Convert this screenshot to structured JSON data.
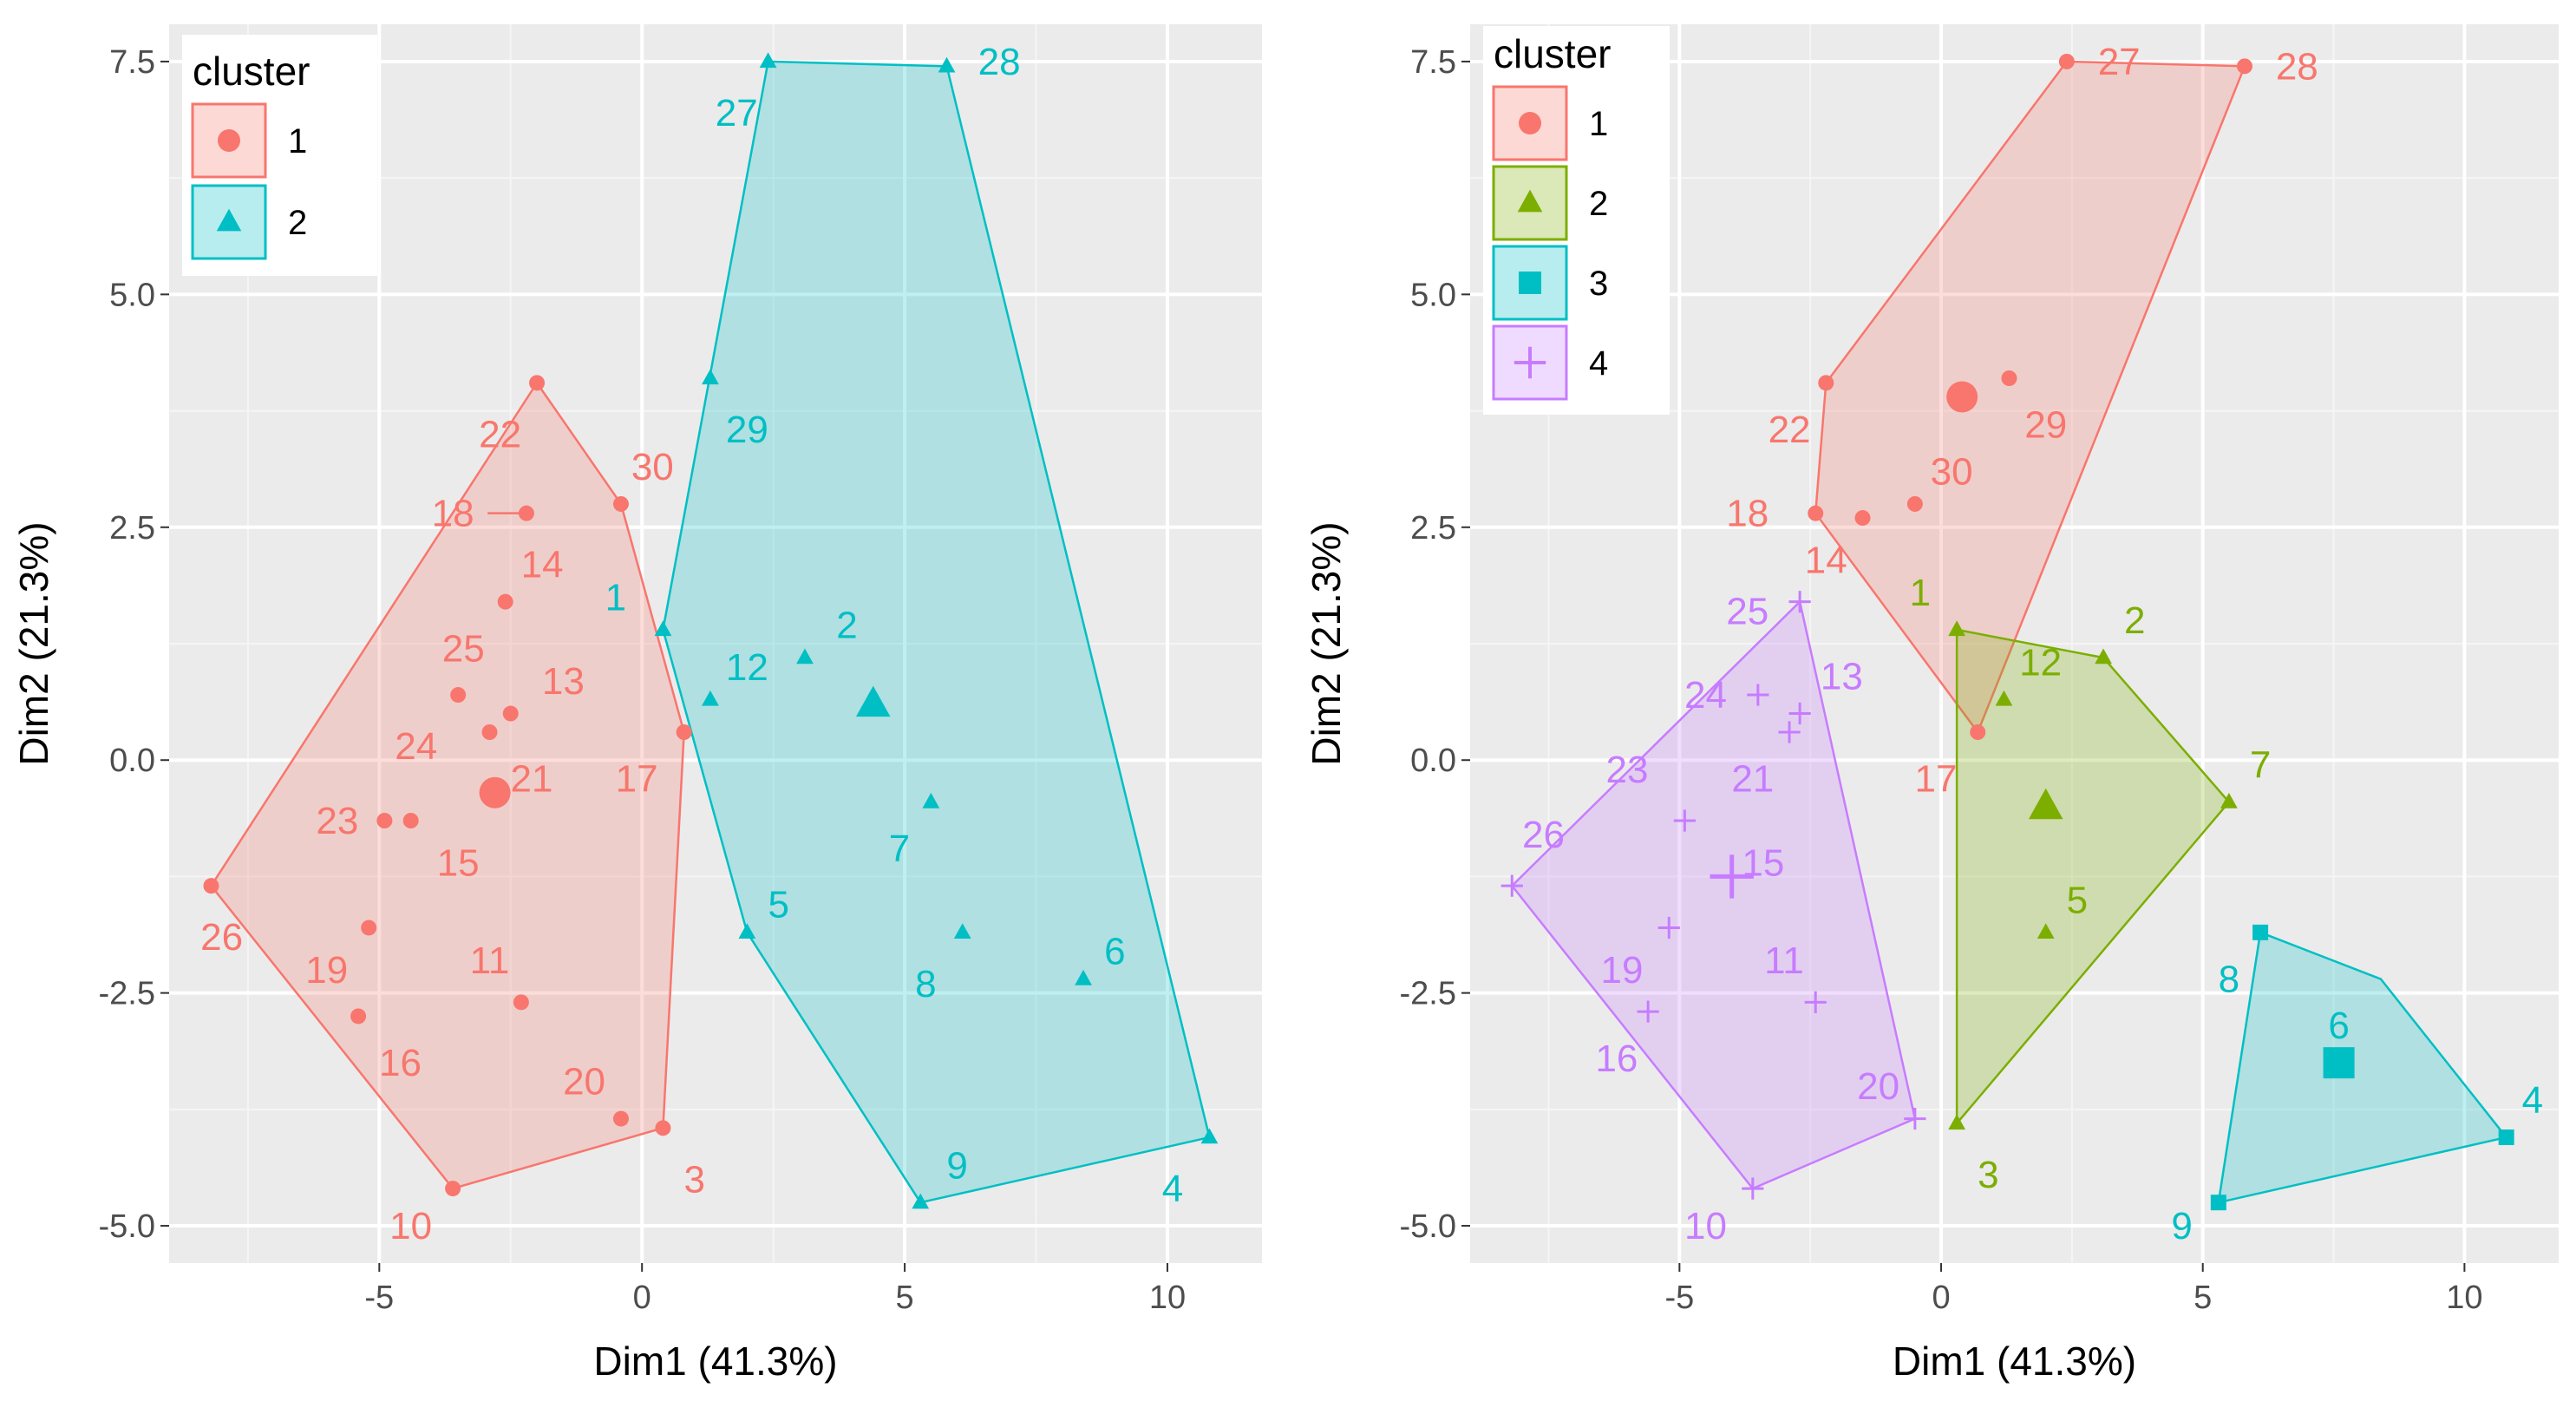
{
  "chart_data": [
    {
      "type": "scatter",
      "title": "",
      "xlabel": "Dim1 (41.3%)",
      "ylabel": "Dim2 (21.3%)",
      "xlim": [
        -9,
        11.8
      ],
      "ylim": [
        -5.4,
        7.9
      ],
      "xticks": [
        -5,
        0,
        5,
        10
      ],
      "xtick_labels": [
        "-5",
        "0",
        "5",
        "10"
      ],
      "yticks": [
        -5,
        -2.5,
        0,
        2.5,
        5,
        7.5
      ],
      "ytick_labels": [
        "-5.0",
        "-2.5",
        "0.0",
        "2.5",
        "5.0",
        "7.5"
      ],
      "legend": {
        "title": "cluster",
        "position": "top-left",
        "entries": [
          {
            "id": "1",
            "label": "1",
            "shape": "circle",
            "color": "#F8766D"
          },
          {
            "id": "2",
            "label": "2",
            "shape": "triangle",
            "color": "#00BFC4"
          }
        ]
      },
      "hulls": [
        {
          "cluster": "1",
          "color": "#F8766D",
          "points": [
            [
              -8.2,
              -1.35
            ],
            [
              -2.0,
              4.05
            ],
            [
              -0.4,
              2.75
            ],
            [
              0.8,
              0.3
            ],
            [
              0.4,
              -3.95
            ],
            [
              -3.6,
              -4.6
            ]
          ]
        },
        {
          "cluster": "2",
          "color": "#00BFC4",
          "points": [
            [
              0.4,
              1.4
            ],
            [
              2.4,
              7.5
            ],
            [
              5.8,
              7.45
            ],
            [
              10.8,
              -4.05
            ],
            [
              5.3,
              -4.75
            ],
            [
              2.0,
              -1.85
            ]
          ]
        }
      ],
      "centroids": [
        {
          "cluster": "1",
          "x": -2.8,
          "y": -0.35,
          "shape": "circle",
          "color": "#F8766D"
        },
        {
          "cluster": "2",
          "x": 4.4,
          "y": 0.6,
          "shape": "triangle",
          "color": "#00BFC4"
        }
      ],
      "points": [
        {
          "label": "1",
          "cluster": "2",
          "x": 0.4,
          "y": 1.4,
          "shape": "triangle",
          "color": "#00BFC4",
          "lx": -0.5,
          "ly": 1.75
        },
        {
          "label": "2",
          "cluster": "2",
          "x": 3.1,
          "y": 1.1,
          "shape": "triangle",
          "color": "#00BFC4",
          "lx": 3.9,
          "ly": 1.45
        },
        {
          "label": "3",
          "cluster": "1",
          "x": 0.4,
          "y": -3.95,
          "shape": "circle",
          "color": "#F8766D",
          "lx": 1.0,
          "ly": -4.5
        },
        {
          "label": "4",
          "cluster": "2",
          "x": 10.8,
          "y": -4.05,
          "shape": "triangle",
          "color": "#00BFC4",
          "lx": 10.1,
          "ly": -4.6
        },
        {
          "label": "5",
          "cluster": "2",
          "x": 2.0,
          "y": -1.85,
          "shape": "triangle",
          "color": "#00BFC4",
          "lx": 2.6,
          "ly": -1.55
        },
        {
          "label": "6",
          "cluster": "2",
          "x": 8.4,
          "y": -2.35,
          "shape": "triangle",
          "color": "#00BFC4",
          "lx": 9.0,
          "ly": -2.05
        },
        {
          "label": "7",
          "cluster": "2",
          "x": 5.5,
          "y": -0.45,
          "shape": "triangle",
          "color": "#00BFC4",
          "lx": 4.9,
          "ly": -0.95
        },
        {
          "label": "8",
          "cluster": "2",
          "x": 6.1,
          "y": -1.85,
          "shape": "triangle",
          "color": "#00BFC4",
          "lx": 5.4,
          "ly": -2.4
        },
        {
          "label": "9",
          "cluster": "2",
          "x": 5.3,
          "y": -4.75,
          "shape": "triangle",
          "color": "#00BFC4",
          "lx": 6.0,
          "ly": -4.35
        },
        {
          "label": "10",
          "cluster": "1",
          "x": -3.6,
          "y": -4.6,
          "shape": "circle",
          "color": "#F8766D",
          "lx": -4.4,
          "ly": -5.0
        },
        {
          "label": "11",
          "cluster": "1",
          "x": -2.3,
          "y": -2.6,
          "shape": "circle",
          "color": "#F8766D",
          "lx": -2.9,
          "ly": -2.15
        },
        {
          "label": "12",
          "cluster": "2",
          "x": 1.3,
          "y": 0.65,
          "shape": "triangle",
          "color": "#00BFC4",
          "lx": 2.0,
          "ly": 1.0
        },
        {
          "label": "13",
          "cluster": "1",
          "x": -2.5,
          "y": 0.5,
          "shape": "circle",
          "color": "#F8766D",
          "lx": -1.5,
          "ly": 0.85
        },
        {
          "label": "14",
          "cluster": "1",
          "x": -2.6,
          "y": 1.7,
          "shape": "circle",
          "color": "#F8766D",
          "lx": -1.9,
          "ly": 2.1
        },
        {
          "label": "15",
          "cluster": "1",
          "x": -4.4,
          "y": -0.65,
          "shape": "circle",
          "color": "#F8766D",
          "lx": -3.5,
          "ly": -1.1
        },
        {
          "label": "16",
          "cluster": "1",
          "x": -5.4,
          "y": -2.75,
          "shape": "circle",
          "color": "#F8766D",
          "lx": -4.6,
          "ly": -3.25
        },
        {
          "label": "17",
          "cluster": "1",
          "x": 0.8,
          "y": 0.3,
          "shape": "circle",
          "color": "#F8766D",
          "lx": -0.1,
          "ly": -0.2
        },
        {
          "label": "18",
          "cluster": "1",
          "x": -2.2,
          "y": 2.65,
          "shape": "circle",
          "color": "#F8766D",
          "lx": -3.6,
          "ly": 2.65
        },
        {
          "label": "19",
          "cluster": "1",
          "x": -5.2,
          "y": -1.8,
          "shape": "circle",
          "color": "#F8766D",
          "lx": -6.0,
          "ly": -2.25
        },
        {
          "label": "20",
          "cluster": "1",
          "x": -0.4,
          "y": -3.85,
          "shape": "circle",
          "color": "#F8766D",
          "lx": -1.1,
          "ly": -3.45
        },
        {
          "label": "21",
          "cluster": "1",
          "x": -2.8,
          "y": -0.35,
          "shape": "circle",
          "color": "#F8766D",
          "lx": -2.1,
          "ly": -0.2
        },
        {
          "label": "22",
          "cluster": "1",
          "x": -2.0,
          "y": 4.05,
          "shape": "circle",
          "color": "#F8766D",
          "lx": -2.7,
          "ly": 3.5
        },
        {
          "label": "23",
          "cluster": "1",
          "x": -4.9,
          "y": -0.65,
          "shape": "circle",
          "color": "#F8766D",
          "lx": -5.8,
          "ly": -0.65
        },
        {
          "label": "24",
          "cluster": "1",
          "x": -2.9,
          "y": 0.3,
          "shape": "circle",
          "color": "#F8766D",
          "lx": -4.3,
          "ly": 0.15
        },
        {
          "label": "25",
          "cluster": "1",
          "x": -3.5,
          "y": 0.7,
          "shape": "circle",
          "color": "#F8766D",
          "lx": -3.4,
          "ly": 1.2
        },
        {
          "label": "26",
          "cluster": "1",
          "x": -8.2,
          "y": -1.35,
          "shape": "circle",
          "color": "#F8766D",
          "lx": -8.0,
          "ly": -1.9
        },
        {
          "label": "27",
          "cluster": "2",
          "x": 2.4,
          "y": 7.5,
          "shape": "triangle",
          "color": "#00BFC4",
          "lx": 1.8,
          "ly": 6.95
        },
        {
          "label": "28",
          "cluster": "2",
          "x": 5.8,
          "y": 7.45,
          "shape": "triangle",
          "color": "#00BFC4",
          "lx": 6.8,
          "ly": 7.5
        },
        {
          "label": "29",
          "cluster": "2",
          "x": 1.3,
          "y": 4.1,
          "shape": "triangle",
          "color": "#00BFC4",
          "lx": 2.0,
          "ly": 3.55
        },
        {
          "label": "30",
          "cluster": "1",
          "x": -0.4,
          "y": 2.75,
          "shape": "circle",
          "color": "#F8766D",
          "lx": 0.2,
          "ly": 3.15
        }
      ]
    },
    {
      "type": "scatter",
      "title": "",
      "xlabel": "Dim1 (41.3%)",
      "ylabel": "Dim2 (21.3%)",
      "xlim": [
        -9,
        11.8
      ],
      "ylim": [
        -5.4,
        7.9
      ],
      "xticks": [
        -5,
        0,
        5,
        10
      ],
      "xtick_labels": [
        "-5",
        "0",
        "5",
        "10"
      ],
      "yticks": [
        -5,
        -2.5,
        0,
        2.5,
        5,
        7.5
      ],
      "ytick_labels": [
        "-5.0",
        "-2.5",
        "0.0",
        "2.5",
        "5.0",
        "7.5"
      ],
      "legend": {
        "title": "cluster",
        "position": "top-left",
        "entries": [
          {
            "id": "1",
            "label": "1",
            "shape": "circle",
            "color": "#F8766D"
          },
          {
            "id": "2",
            "label": "2",
            "shape": "triangle",
            "color": "#7CAE00"
          },
          {
            "id": "3",
            "label": "3",
            "shape": "square",
            "color": "#00BFC4"
          },
          {
            "id": "4",
            "label": "4",
            "shape": "cross",
            "color": "#C77CFF"
          }
        ]
      },
      "hulls": [
        {
          "cluster": "1",
          "color": "#F8766D",
          "points": [
            [
              -2.4,
              2.65
            ],
            [
              -2.2,
              4.05
            ],
            [
              2.4,
              7.5
            ],
            [
              5.8,
              7.45
            ],
            [
              0.7,
              0.3
            ]
          ]
        },
        {
          "cluster": "2",
          "color": "#7CAE00",
          "points": [
            [
              0.3,
              1.4
            ],
            [
              3.1,
              1.1
            ],
            [
              5.5,
              -0.45
            ],
            [
              0.3,
              -3.9
            ]
          ]
        },
        {
          "cluster": "3",
          "color": "#00BFC4",
          "points": [
            [
              6.1,
              -1.85
            ],
            [
              8.4,
              -2.35
            ],
            [
              10.8,
              -4.05
            ],
            [
              5.3,
              -4.75
            ]
          ]
        },
        {
          "cluster": "4",
          "color": "#C77CFF",
          "points": [
            [
              -8.2,
              -1.35
            ],
            [
              -2.7,
              1.7
            ],
            [
              -0.5,
              -3.85
            ],
            [
              -3.6,
              -4.6
            ]
          ]
        }
      ],
      "centroids": [
        {
          "cluster": "1",
          "x": 0.4,
          "y": 3.9,
          "shape": "circle",
          "color": "#F8766D"
        },
        {
          "cluster": "2",
          "x": 2.0,
          "y": -0.5,
          "shape": "triangle",
          "color": "#7CAE00"
        },
        {
          "cluster": "3",
          "x": 7.6,
          "y": -3.25,
          "shape": "square",
          "color": "#00BFC4"
        },
        {
          "cluster": "4",
          "x": -4.0,
          "y": -1.25,
          "shape": "cross",
          "color": "#C77CFF"
        }
      ],
      "points": [
        {
          "label": "1",
          "cluster": "2",
          "x": 0.3,
          "y": 1.4,
          "shape": "triangle",
          "color": "#7CAE00",
          "lx": -0.4,
          "ly": 1.8
        },
        {
          "label": "2",
          "cluster": "2",
          "x": 3.1,
          "y": 1.1,
          "shape": "triangle",
          "color": "#7CAE00",
          "lx": 3.7,
          "ly": 1.5
        },
        {
          "label": "3",
          "cluster": "2",
          "x": 0.3,
          "y": -3.9,
          "shape": "triangle",
          "color": "#7CAE00",
          "lx": 0.9,
          "ly": -4.45
        },
        {
          "label": "4",
          "cluster": "3",
          "x": 10.8,
          "y": -4.05,
          "shape": "square",
          "color": "#00BFC4",
          "lx": 11.3,
          "ly": -3.65
        },
        {
          "label": "5",
          "cluster": "2",
          "x": 2.0,
          "y": -1.85,
          "shape": "triangle",
          "color": "#7CAE00",
          "lx": 2.6,
          "ly": -1.5
        },
        {
          "label": "6",
          "cluster": "3",
          "x": 7.6,
          "y": -3.25,
          "shape": "square",
          "color": "#00BFC4",
          "lx": 7.6,
          "ly": -2.85
        },
        {
          "label": "7",
          "cluster": "2",
          "x": 5.5,
          "y": -0.45,
          "shape": "triangle",
          "color": "#7CAE00",
          "lx": 6.1,
          "ly": -0.05
        },
        {
          "label": "8",
          "cluster": "3",
          "x": 6.1,
          "y": -1.85,
          "shape": "square",
          "color": "#00BFC4",
          "lx": 5.5,
          "ly": -2.35
        },
        {
          "label": "9",
          "cluster": "3",
          "x": 5.3,
          "y": -4.75,
          "shape": "square",
          "color": "#00BFC4",
          "lx": 4.6,
          "ly": -5.0
        },
        {
          "label": "10",
          "cluster": "4",
          "x": -3.6,
          "y": -4.6,
          "shape": "cross",
          "color": "#C77CFF",
          "lx": -4.5,
          "ly": -5.0
        },
        {
          "label": "11",
          "cluster": "4",
          "x": -2.4,
          "y": -2.6,
          "shape": "cross",
          "color": "#C77CFF",
          "lx": -3.0,
          "ly": -2.15
        },
        {
          "label": "12",
          "cluster": "2",
          "x": 1.2,
          "y": 0.65,
          "shape": "triangle",
          "color": "#7CAE00",
          "lx": 1.9,
          "ly": 1.05
        },
        {
          "label": "13",
          "cluster": "4",
          "x": -2.7,
          "y": 0.5,
          "shape": "cross",
          "color": "#C77CFF",
          "lx": -1.9,
          "ly": 0.9
        },
        {
          "label": "14",
          "cluster": "1",
          "x": -1.5,
          "y": 2.6,
          "shape": "circle",
          "color": "#F8766D",
          "lx": -2.2,
          "ly": 2.15
        },
        {
          "label": "15",
          "cluster": "4",
          "x": -4.0,
          "y": -1.25,
          "shape": "cross",
          "color": "#C77CFF",
          "lx": -3.4,
          "ly": -1.1
        },
        {
          "label": "16",
          "cluster": "4",
          "x": -5.6,
          "y": -2.7,
          "shape": "cross",
          "color": "#C77CFF",
          "lx": -6.2,
          "ly": -3.2
        },
        {
          "label": "17",
          "cluster": "1",
          "x": 0.7,
          "y": 0.3,
          "shape": "circle",
          "color": "#F8766D",
          "lx": -0.1,
          "ly": -0.2
        },
        {
          "label": "18",
          "cluster": "1",
          "x": -2.4,
          "y": 2.65,
          "shape": "circle",
          "color": "#F8766D",
          "lx": -3.7,
          "ly": 2.65
        },
        {
          "label": "19",
          "cluster": "4",
          "x": -5.2,
          "y": -1.8,
          "shape": "cross",
          "color": "#C77CFF",
          "lx": -6.1,
          "ly": -2.25
        },
        {
          "label": "20",
          "cluster": "4",
          "x": -0.5,
          "y": -3.85,
          "shape": "cross",
          "color": "#C77CFF",
          "lx": -1.2,
          "ly": -3.5
        },
        {
          "label": "21",
          "cluster": "4",
          "x": -2.9,
          "y": 0.3,
          "shape": "cross",
          "color": "#C77CFF",
          "lx": -3.6,
          "ly": -0.2
        },
        {
          "label": "22",
          "cluster": "1",
          "x": -2.2,
          "y": 4.05,
          "shape": "circle",
          "color": "#F8766D",
          "lx": -2.9,
          "ly": 3.55
        },
        {
          "label": "23",
          "cluster": "4",
          "x": -4.9,
          "y": -0.65,
          "shape": "cross",
          "color": "#C77CFF",
          "lx": -6.0,
          "ly": -0.1
        },
        {
          "label": "24",
          "cluster": "4",
          "x": -3.5,
          "y": 0.7,
          "shape": "cross",
          "color": "#C77CFF",
          "lx": -4.5,
          "ly": 0.7
        },
        {
          "label": "25",
          "cluster": "4",
          "x": -2.7,
          "y": 1.7,
          "shape": "cross",
          "color": "#C77CFF",
          "lx": -3.7,
          "ly": 1.6
        },
        {
          "label": "26",
          "cluster": "4",
          "x": -8.2,
          "y": -1.35,
          "shape": "cross",
          "color": "#C77CFF",
          "lx": -7.6,
          "ly": -0.8
        },
        {
          "label": "27",
          "cluster": "1",
          "x": 2.4,
          "y": 7.5,
          "shape": "circle",
          "color": "#F8766D",
          "lx": 3.4,
          "ly": 7.5
        },
        {
          "label": "28",
          "cluster": "1",
          "x": 5.8,
          "y": 7.45,
          "shape": "circle",
          "color": "#F8766D",
          "lx": 6.8,
          "ly": 7.45
        },
        {
          "label": "29",
          "cluster": "1",
          "x": 1.3,
          "y": 4.1,
          "shape": "circle",
          "color": "#F8766D",
          "lx": 2.0,
          "ly": 3.6
        },
        {
          "label": "30",
          "cluster": "1",
          "x": -0.5,
          "y": 2.75,
          "shape": "circle",
          "color": "#F8766D",
          "lx": 0.2,
          "ly": 3.1
        }
      ]
    }
  ]
}
